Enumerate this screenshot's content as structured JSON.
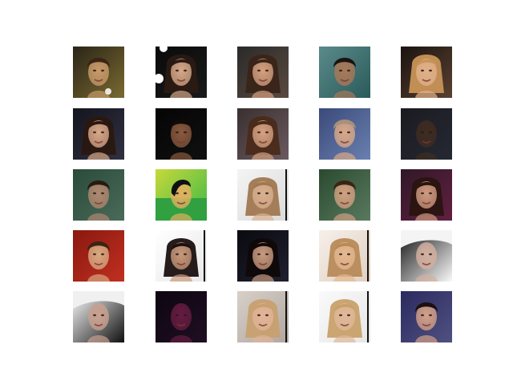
{
  "figure": {
    "background": "#ffffff",
    "rows": 5,
    "cols": 5
  },
  "samples": [
    {
      "bg": "#2a2418",
      "bg2": "#7a6a30",
      "skin": "#c89a6a",
      "hair": "#3a2414",
      "hair_style": "messy-dark",
      "white_blob": "left-top"
    },
    {
      "bg": "#0a0a0a",
      "bg2": "#1a1a1a",
      "skin": "#d6a888",
      "hair": "#2a1a14",
      "hair_style": "long-dark",
      "white_blob": "left-top-white"
    },
    {
      "bg": "#2a2a2a",
      "bg2": "#5a4a40",
      "skin": "#d4a080",
      "hair": "#3a2418",
      "hair_style": "long-dark",
      "white_blob": ""
    },
    {
      "bg": "#5a8a8a",
      "bg2": "#2a5a5a",
      "skin": "#a87858",
      "hair": "#1a1410",
      "hair_style": "short-dark",
      "white_blob": ""
    },
    {
      "bg": "#1a1410",
      "bg2": "#5a4030",
      "skin": "#e0b08a",
      "hair": "#c89458",
      "hair_style": "long-blonde",
      "white_blob": ""
    },
    {
      "bg": "#151520",
      "bg2": "#303040",
      "skin": "#d8a88a",
      "hair": "#2a1810",
      "hair_style": "long-dark",
      "white_blob": ""
    },
    {
      "bg": "#050505",
      "bg2": "#101010",
      "skin": "#8a5a40",
      "hair": "#100a08",
      "hair_style": "short-dark",
      "white_blob": ""
    },
    {
      "bg": "#3a3030",
      "bg2": "#6a5a60",
      "skin": "#d4a080",
      "hair": "#4a2a1a",
      "hair_style": "long-dark",
      "white_blob": ""
    },
    {
      "bg": "#3a4a7a",
      "bg2": "#6a80b0",
      "skin": "#d8a888",
      "hair": "#a89078",
      "hair_style": "short-light",
      "white_blob": ""
    },
    {
      "bg": "#1a2030",
      "bg2": "#2a3a50",
      "skin": "#5a4030",
      "hair": "#201410",
      "hair_style": "shadow",
      "white_blob": ""
    },
    {
      "bg": "#2a4a3a",
      "bg2": "#4a6a5a",
      "skin": "#b08870",
      "hair": "#2a1a10",
      "hair_style": "short-dark",
      "white_blob": ""
    },
    {
      "bg": "#c8d83a",
      "bg2": "#3ab848",
      "skin": "#e0b060",
      "hair": "#101010",
      "hair_style": "glitch",
      "white_blob": ""
    },
    {
      "bg": "#f4f4f4",
      "bg2": "#dadada",
      "skin": "#d8b090",
      "hair": "#a07850",
      "hair_style": "long-light",
      "white_blob": ""
    },
    {
      "bg": "#2a4a30",
      "bg2": "#5a7a60",
      "skin": "#d0a080",
      "hair": "#3a2414",
      "hair_style": "short-dark",
      "white_blob": ""
    },
    {
      "bg": "#301828",
      "bg2": "#602040",
      "skin": "#d09a80",
      "hair": "#2a1410",
      "hair_style": "long-dark",
      "white_blob": ""
    },
    {
      "bg": "#8a1810",
      "bg2": "#c03020",
      "skin": "#d8a880",
      "hair": "#3a2414",
      "hair_style": "short-dark",
      "white_blob": ""
    },
    {
      "bg": "#ffffff",
      "bg2": "#e8e8e8",
      "skin": "#c8987a",
      "hair": "#1a1010",
      "hair_style": "long-dark",
      "white_blob": ""
    },
    {
      "bg": "#0a0a10",
      "bg2": "#202030",
      "skin": "#c89a80",
      "hair": "#100808",
      "hair_style": "long-dark",
      "white_blob": ""
    },
    {
      "bg": "#f6f0ea",
      "bg2": "#e0d0c0",
      "skin": "#e4b890",
      "hair": "#b88a58",
      "hair_style": "long-blonde",
      "white_blob": ""
    },
    {
      "bg": "#101010",
      "bg2": "#fafafa",
      "skin": "#d4b0a0",
      "hair": "#f4f4f4",
      "hair_style": "white-top",
      "white_blob": ""
    },
    {
      "bg": "#ffffff",
      "bg2": "#101010",
      "skin": "#c8a090",
      "hair": "#f0f0f0",
      "hair_style": "white-top",
      "white_blob": ""
    },
    {
      "bg": "#100818",
      "bg2": "#301838",
      "skin": "#b03070",
      "hair": "#0a0508",
      "hair_style": "shadow",
      "white_blob": ""
    },
    {
      "bg": "#d8d0c8",
      "bg2": "#b0a8a0",
      "skin": "#e0b498",
      "hair": "#c8a070",
      "hair_style": "long-blonde",
      "white_blob": ""
    },
    {
      "bg": "#fafafa",
      "bg2": "#e6e6e6",
      "skin": "#e0b89a",
      "hair": "#c8a06a",
      "hair_style": "long-blonde",
      "white_blob": ""
    },
    {
      "bg": "#2a2a60",
      "bg2": "#505080",
      "skin": "#d4a088",
      "hair": "#1a1010",
      "hair_style": "short-dark",
      "white_blob": ""
    }
  ]
}
